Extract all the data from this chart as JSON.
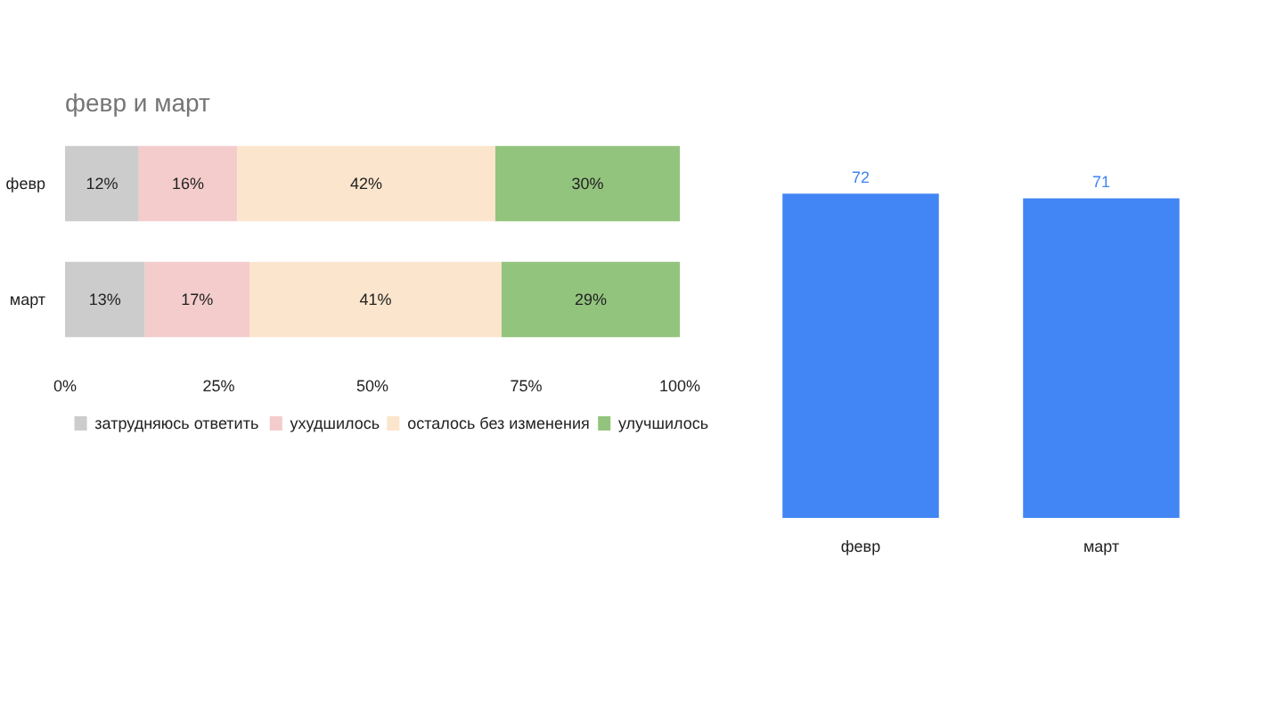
{
  "chart_data": [
    {
      "type": "bar",
      "title": "февр и март",
      "orientation": "horizontal",
      "stacked": true,
      "categories": [
        "февр",
        "март"
      ],
      "series": [
        {
          "name": "затрудняюсь ответить",
          "color": "#cccccc",
          "values": [
            12,
            13
          ],
          "value_labels": [
            "12%",
            "13%"
          ]
        },
        {
          "name": "ухудшилось",
          "color": "#f4cccc",
          "values": [
            16,
            17
          ],
          "value_labels": [
            "16%",
            "17%"
          ]
        },
        {
          "name": "осталось без изменения",
          "color": "#fce5cd",
          "values": [
            42,
            41
          ],
          "value_labels": [
            "42%",
            "41%"
          ]
        },
        {
          "name": "улучшилось",
          "color": "#93c47d",
          "values": [
            30,
            29
          ],
          "value_labels": [
            "30%",
            "29%"
          ]
        }
      ],
      "xlim": [
        0,
        100
      ],
      "xticks": [
        {
          "value": 0,
          "label": "0%"
        },
        {
          "value": 25,
          "label": "25%"
        },
        {
          "value": 50,
          "label": "50%"
        },
        {
          "value": 75,
          "label": "75%"
        },
        {
          "value": 100,
          "label": "100%"
        }
      ],
      "legend": "bottom",
      "grid": false
    },
    {
      "type": "bar",
      "categories": [
        "февр",
        "март"
      ],
      "values": [
        72,
        71
      ],
      "color": "#4285f4",
      "data_labels": true,
      "tick_labels": "x",
      "grid": false
    }
  ]
}
